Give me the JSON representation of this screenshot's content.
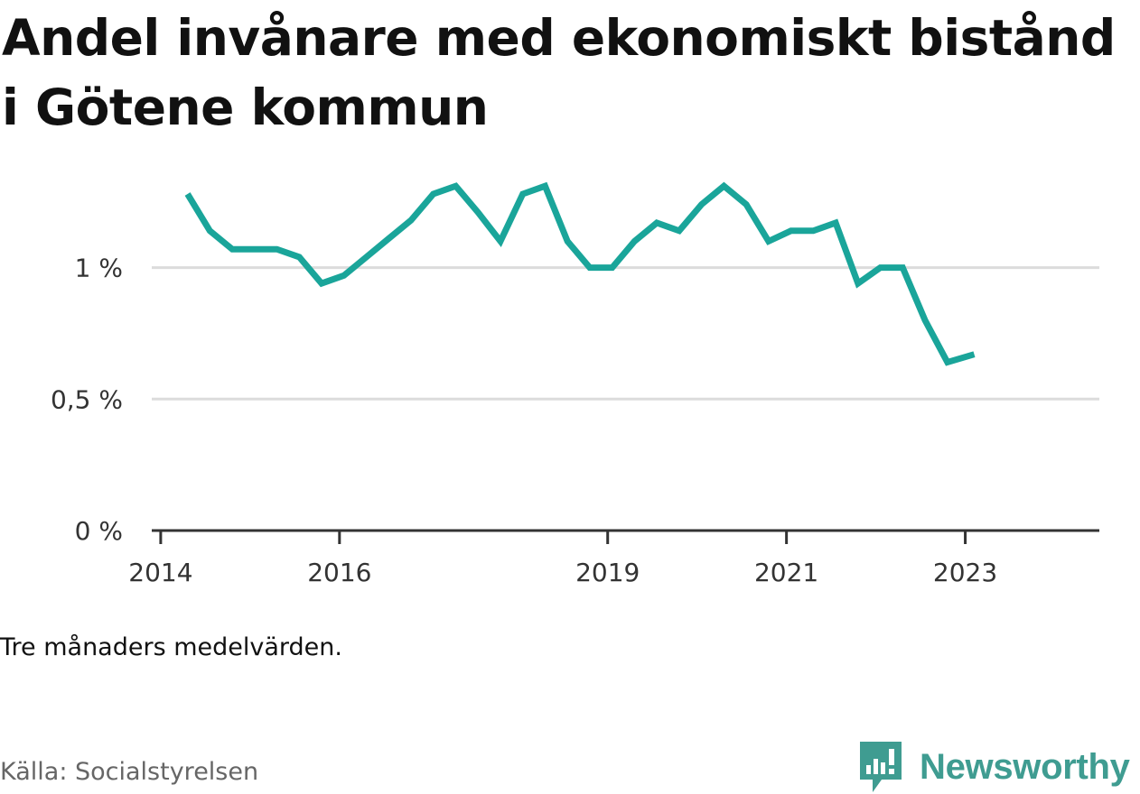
{
  "title": "Andel invånare med ekonomiskt bistånd i Götene kommun",
  "note": "Tre månaders medelvärden.",
  "source": "Källa: Socialstyrelsen",
  "brand": {
    "name": "Newsworthy",
    "color": "#3f9c91"
  },
  "chart_data": {
    "type": "line",
    "title": "Andel invånare med ekonomiskt bistånd i Götene kommun",
    "xlabel": "",
    "ylabel": "",
    "line_color": "#1aa59a",
    "grid": true,
    "ylim": [
      0,
      1.4
    ],
    "y_ticks": [
      {
        "value": 0,
        "label": "0 %"
      },
      {
        "value": 0.5,
        "label": "0,5 %"
      },
      {
        "value": 1,
        "label": "1 %"
      }
    ],
    "x_ticks": [
      {
        "value": 2014,
        "label": "2014"
      },
      {
        "value": 2016,
        "label": "2016"
      },
      {
        "value": 2019,
        "label": "2019"
      },
      {
        "value": 2021,
        "label": "2021"
      },
      {
        "value": 2023,
        "label": "2023"
      }
    ],
    "xlim": [
      2013.9,
      2024.5
    ],
    "series": [
      {
        "x": [
          2014.3,
          2014.55,
          2014.8,
          2015.05,
          2015.3,
          2015.55,
          2015.8,
          2016.05,
          2016.3,
          2016.55,
          2016.8,
          2017.05,
          2017.3,
          2017.55,
          2017.8,
          2018.05,
          2018.3,
          2018.55,
          2018.8,
          2019.05,
          2019.3,
          2019.55,
          2019.8,
          2020.05,
          2020.3,
          2020.55,
          2020.8,
          2021.05,
          2021.3,
          2021.55,
          2021.8,
          2022.05,
          2022.3,
          2022.55,
          2022.8,
          2023.1
        ],
        "values": [
          1.28,
          1.14,
          1.07,
          1.07,
          1.07,
          1.04,
          0.94,
          0.97,
          1.04,
          1.11,
          1.18,
          1.28,
          1.31,
          1.21,
          1.1,
          1.28,
          1.31,
          1.1,
          1.0,
          1.0,
          1.1,
          1.17,
          1.14,
          1.24,
          1.31,
          1.24,
          1.1,
          1.14,
          1.14,
          1.17,
          0.94,
          1.0,
          1.0,
          0.8,
          0.64,
          0.67
        ]
      }
    ]
  }
}
